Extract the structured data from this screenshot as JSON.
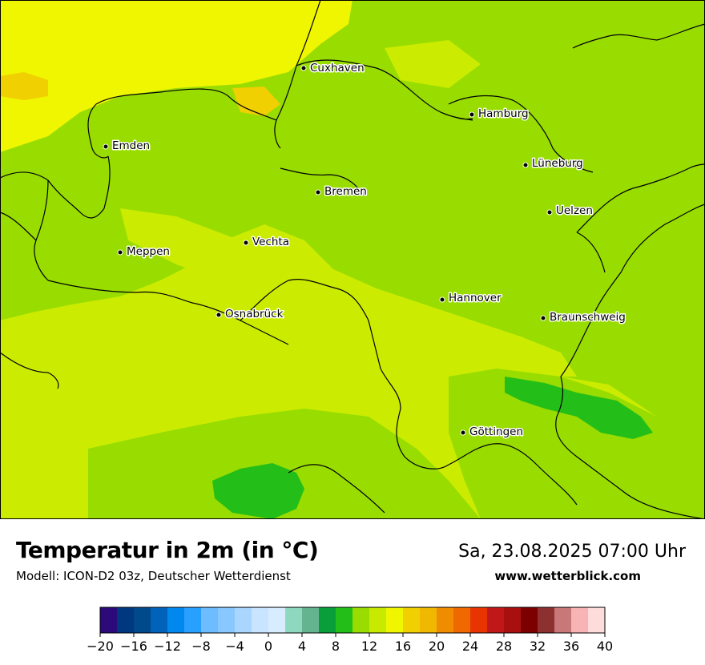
{
  "header": {
    "title": "Temperatur in 2m (in °C)",
    "model": "Modell: ICON-D2 03z, Deutscher Wetterdienst",
    "datetime": "Sa, 23.08.2025 07:00 Uhr",
    "website": "www.wetterblick.com"
  },
  "cities": [
    {
      "name": "Cuxhaven"
    },
    {
      "name": "Hamburg"
    },
    {
      "name": "Emden"
    },
    {
      "name": "Lüneburg"
    },
    {
      "name": "Bremen"
    },
    {
      "name": "Uelzen"
    },
    {
      "name": "Vechta"
    },
    {
      "name": "Meppen"
    },
    {
      "name": "Hannover"
    },
    {
      "name": "Osnabrück"
    },
    {
      "name": "Braunschweig"
    },
    {
      "name": "Göttingen"
    }
  ],
  "colorbar": {
    "unit": "°C",
    "min": -20,
    "max": 40,
    "step": 2,
    "tick_labels": [
      "−20",
      "−16",
      "−12",
      "−8",
      "−4",
      "0",
      "4",
      "8",
      "12",
      "16",
      "20",
      "24",
      "28",
      "32",
      "36",
      "40"
    ],
    "colors": [
      "#2d0a7a",
      "#003880",
      "#004a8c",
      "#0062b8",
      "#0088ee",
      "#28a0ff",
      "#6cbcff",
      "#88c8ff",
      "#a8d6ff",
      "#c8e4ff",
      "#d8ecff",
      "#8ed8c0",
      "#64b490",
      "#0a9e3a",
      "#24be18",
      "#98dc00",
      "#c8ea00",
      "#f0f600",
      "#f0d000",
      "#f0b800",
      "#f08c00",
      "#f06800",
      "#e83400",
      "#c01818",
      "#a81010",
      "#7c0000",
      "#8c3030",
      "#c87878",
      "#f8b4b4",
      "#ffdcdc"
    ]
  }
}
